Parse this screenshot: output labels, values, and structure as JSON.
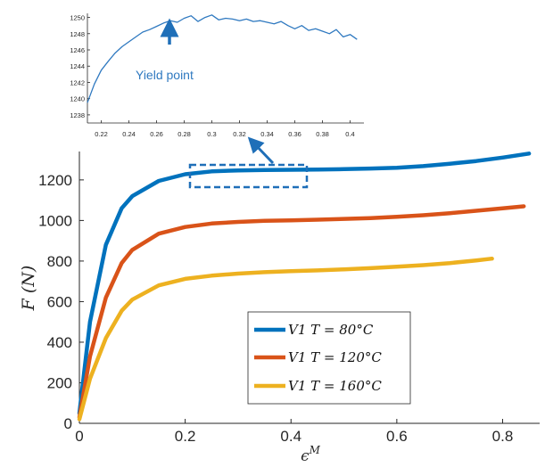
{
  "chart_data": [
    {
      "type": "line",
      "xlabel": "ε^M",
      "ylabel": "F (N)",
      "xlim": [
        0,
        0.87
      ],
      "ylim": [
        0,
        1340
      ],
      "xticks": [
        "0",
        "0.2",
        "0.4",
        "0.6",
        "0.8"
      ],
      "yticks": [
        "0",
        "200",
        "400",
        "600",
        "800",
        "1000",
        "1200"
      ],
      "grid": false,
      "legend_position": "bottom-center",
      "colors": [
        "#0072bd",
        "#d95319",
        "#edb120"
      ],
      "series": [
        {
          "name": "V1  T = 80°C",
          "x": [
            0,
            0.02,
            0.05,
            0.08,
            0.1,
            0.15,
            0.2,
            0.25,
            0.3,
            0.35,
            0.4,
            0.45,
            0.5,
            0.55,
            0.6,
            0.65,
            0.7,
            0.75,
            0.8,
            0.85
          ],
          "y": [
            50,
            500,
            880,
            1060,
            1120,
            1195,
            1228,
            1242,
            1247,
            1249,
            1250,
            1251,
            1253,
            1256,
            1260,
            1268,
            1280,
            1293,
            1310,
            1330
          ]
        },
        {
          "name": "V1  T = 120°C",
          "x": [
            0,
            0.02,
            0.05,
            0.08,
            0.1,
            0.15,
            0.2,
            0.25,
            0.3,
            0.35,
            0.4,
            0.45,
            0.5,
            0.55,
            0.6,
            0.65,
            0.7,
            0.75,
            0.8,
            0.84
          ],
          "y": [
            30,
            330,
            620,
            790,
            855,
            935,
            968,
            985,
            993,
            998,
            1001,
            1004,
            1008,
            1012,
            1018,
            1026,
            1036,
            1048,
            1060,
            1070
          ]
        },
        {
          "name": "V1  T = 160°C",
          "x": [
            0,
            0.02,
            0.05,
            0.08,
            0.1,
            0.15,
            0.2,
            0.25,
            0.3,
            0.35,
            0.4,
            0.45,
            0.5,
            0.55,
            0.6,
            0.65,
            0.7,
            0.75,
            0.78
          ],
          "y": [
            20,
            220,
            420,
            555,
            610,
            680,
            712,
            728,
            738,
            745,
            750,
            754,
            759,
            765,
            772,
            780,
            790,
            803,
            812
          ]
        }
      ]
    },
    {
      "type": "line",
      "annotation": "Yield point",
      "xlim": [
        0.21,
        0.41
      ],
      "ylim": [
        1237,
        1250.5
      ],
      "xticks": [
        "0.22",
        "0.24",
        "0.26",
        "0.28",
        "0.3",
        "0.32",
        "0.34",
        "0.36",
        "0.38",
        "0.4"
      ],
      "yticks": [
        "1238",
        "1240",
        "1242",
        "1244",
        "1246",
        "1248",
        "1250"
      ],
      "series": [
        {
          "x": [
            0.21,
            0.215,
            0.22,
            0.225,
            0.23,
            0.235,
            0.24,
            0.245,
            0.25,
            0.255,
            0.26,
            0.265,
            0.27,
            0.275,
            0.28,
            0.285,
            0.29,
            0.295,
            0.3,
            0.305,
            0.31,
            0.315,
            0.32,
            0.325,
            0.33,
            0.335,
            0.34,
            0.345,
            0.35,
            0.355,
            0.36,
            0.365,
            0.37,
            0.375,
            0.38,
            0.385,
            0.39,
            0.395,
            0.4,
            0.405
          ],
          "y": [
            1239.5,
            1241.8,
            1243.5,
            1244.6,
            1245.6,
            1246.4,
            1247.0,
            1247.6,
            1248.2,
            1248.5,
            1248.9,
            1249.3,
            1249.6,
            1249.4,
            1249.9,
            1250.2,
            1249.5,
            1250.0,
            1250.3,
            1249.7,
            1249.9,
            1249.8,
            1249.6,
            1249.8,
            1249.5,
            1249.6,
            1249.4,
            1249.2,
            1249.5,
            1249.0,
            1248.6,
            1249.0,
            1248.4,
            1248.6,
            1248.3,
            1248.0,
            1248.5,
            1247.6,
            1247.9,
            1247.3
          ]
        }
      ]
    }
  ]
}
